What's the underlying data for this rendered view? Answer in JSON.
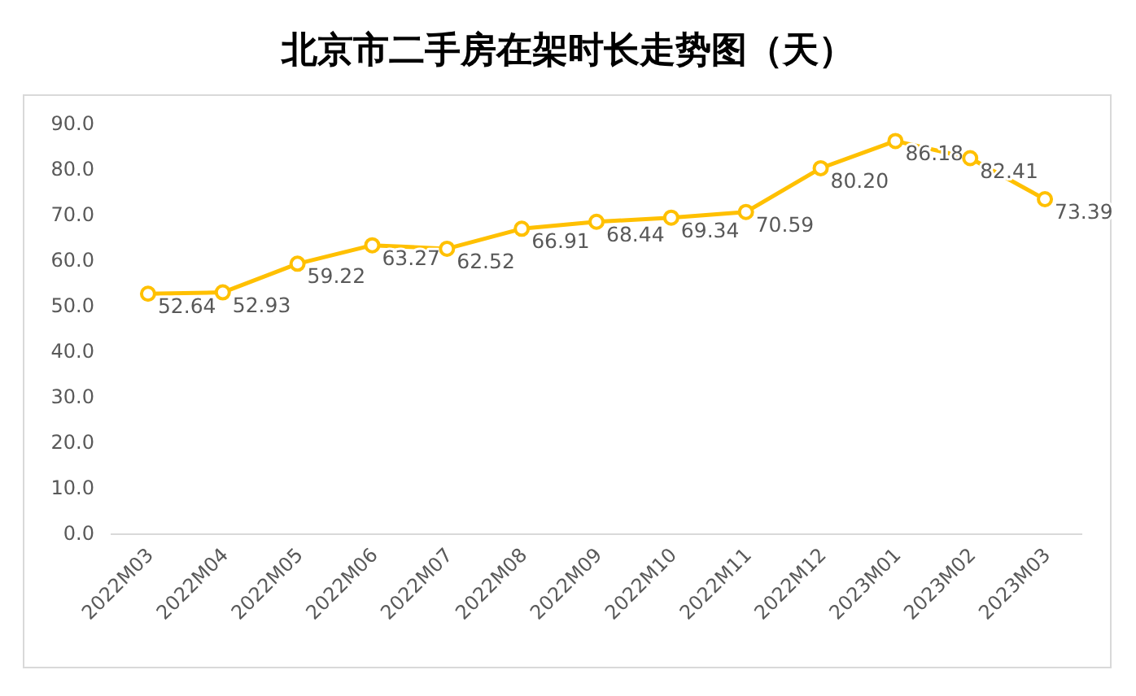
{
  "chart_data": {
    "type": "line",
    "title": "北京市二手房在架时长走势图（天）",
    "categories": [
      "2022M03",
      "2022M04",
      "2022M05",
      "2022M06",
      "2022M07",
      "2022M08",
      "2022M09",
      "2022M10",
      "2022M11",
      "2022M12",
      "2023M01",
      "2023M02",
      "2023M03"
    ],
    "series": [
      {
        "color": "#ffc000",
        "values": [
          52.64,
          52.93,
          59.22,
          63.27,
          62.52,
          66.91,
          68.44,
          69.34,
          70.59,
          80.2,
          86.18,
          82.41,
          73.39
        ],
        "value_labels": [
          "52.64",
          "52.93",
          "59.22",
          "63.27",
          "62.52",
          "66.91",
          "68.44",
          "69.34",
          "70.59",
          "80.20",
          "86.18",
          "82.41",
          "73.39"
        ]
      }
    ],
    "ylim": [
      0,
      90
    ],
    "yticks": [
      {
        "value": 0,
        "label": "0.0"
      },
      {
        "value": 10,
        "label": "10.0"
      },
      {
        "value": 20,
        "label": "20.0"
      },
      {
        "value": 30,
        "label": "30.0"
      },
      {
        "value": 40,
        "label": "40.0"
      },
      {
        "value": 50,
        "label": "50.0"
      },
      {
        "value": 60,
        "label": "60.0"
      },
      {
        "value": 70,
        "label": "70.0"
      },
      {
        "value": 80,
        "label": "80.0"
      },
      {
        "value": 90,
        "label": "90.0"
      }
    ],
    "marker": "circle",
    "line_style": "solid",
    "grid": false
  }
}
